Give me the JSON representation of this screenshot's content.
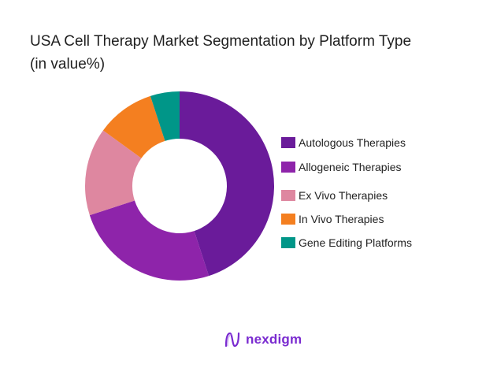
{
  "title": {
    "line1": "USA Cell Therapy Market Segmentation by Platform Type",
    "line2": "(in value%)"
  },
  "chart_data": {
    "type": "pie",
    "subtype": "donut",
    "title": "USA Cell Therapy Market Segmentation by Platform Type (in value%)",
    "categories": [
      "Autologous Therapies",
      "Allogeneic Therapies",
      "Ex Vivo Therapies",
      "In Vivo Therapies",
      "Gene Editing Platforms"
    ],
    "values": [
      45,
      25,
      15,
      10,
      5
    ],
    "colors": [
      "#6a1b9a",
      "#8e24aa",
      "#de87a0",
      "#f47f20",
      "#009688"
    ],
    "legend_position": "right",
    "start_angle": "top, clockwise"
  },
  "legend": {
    "items": [
      {
        "label": "Autologous Therapies",
        "color": "#6a1b9a"
      },
      {
        "label": "Allogeneic Therapies",
        "color": "#8e24aa"
      },
      {
        "label": "Ex Vivo Therapies",
        "color": "#de87a0"
      },
      {
        "label": "In Vivo Therapies",
        "color": "#f47f20"
      },
      {
        "label": "Gene Editing Platforms",
        "color": "#009688"
      }
    ]
  },
  "logo": {
    "text": "nexdigm",
    "icon": "nexdigm-wave-icon",
    "color": "#7a2bd0"
  }
}
